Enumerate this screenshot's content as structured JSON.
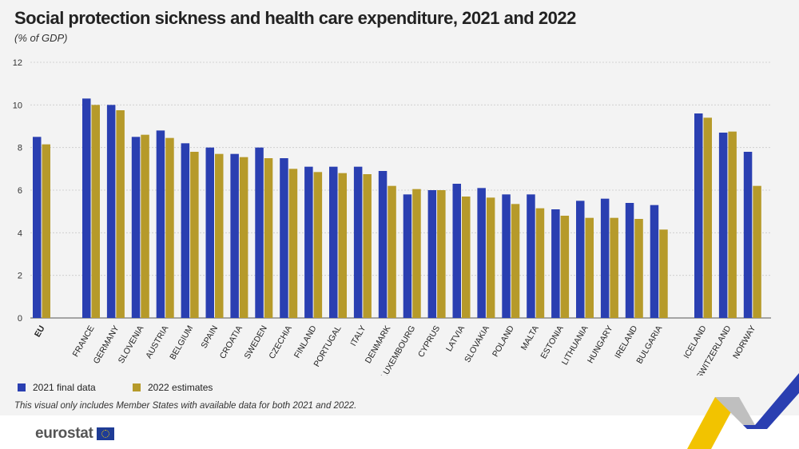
{
  "header": {
    "title": "Social protection sickness and health care expenditure, 2021 and 2022",
    "subtitle": "(% of GDP)"
  },
  "legend": {
    "s2021": "2021 final data",
    "s2022": "2022 estimates"
  },
  "note": "This visual only includes Member States with available data for both 2021 and 2022.",
  "brand": {
    "name": "eurostat"
  },
  "colors": {
    "s2021": "#2a3fb1",
    "s2022": "#b69a2a",
    "grid": "#c9c9c9"
  },
  "chart_data": {
    "type": "bar",
    "categories": [
      "EU",
      "FRANCE",
      "GERMANY",
      "SLOVENIA",
      "AUSTRIA",
      "BELGIUM",
      "SPAIN",
      "CROATIA",
      "SWEDEN",
      "CZECHIA",
      "FINLAND",
      "PORTUGAL",
      "ITALY",
      "DENMARK",
      "LUXEMBOURG",
      "CYPRUS",
      "LATVIA",
      "SLOVAKIA",
      "POLAND",
      "MALTA",
      "ESTONIA",
      "LITHUANIA",
      "HUNGARY",
      "IRELAND",
      "BULGARIA",
      "ICELAND",
      "SWITZERLAND",
      "NORWAY"
    ],
    "bold_categories": [
      "EU"
    ],
    "series": [
      {
        "name": "2021 final data",
        "values": [
          8.5,
          10.3,
          10.0,
          8.5,
          8.8,
          8.2,
          8.0,
          7.7,
          8.0,
          7.5,
          7.1,
          7.1,
          7.1,
          6.9,
          5.8,
          6.0,
          6.3,
          6.1,
          5.8,
          5.8,
          5.1,
          5.5,
          5.6,
          5.4,
          5.3,
          9.6,
          8.7,
          7.8
        ]
      },
      {
        "name": "2022 estimates",
        "values": [
          8.15,
          10.0,
          9.75,
          8.6,
          8.45,
          7.8,
          7.7,
          7.55,
          7.5,
          7.0,
          6.85,
          6.8,
          6.75,
          6.2,
          6.05,
          6.0,
          5.7,
          5.65,
          5.35,
          5.15,
          4.8,
          4.7,
          4.7,
          4.65,
          4.15,
          9.4,
          8.75,
          6.2
        ]
      }
    ],
    "ylim": [
      0,
      12
    ],
    "yticks": [
      "0",
      "2",
      "4",
      "6",
      "8",
      "10",
      "12"
    ],
    "grid": true,
    "legend_position": "bottom-left"
  }
}
